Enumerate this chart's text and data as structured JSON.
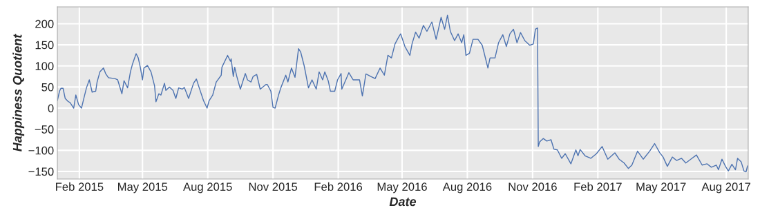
{
  "chart_data": {
    "type": "line",
    "xlabel": "Date",
    "ylabel": "Happiness Quotient",
    "grid": true,
    "xlim": [
      "2015-01-01",
      "2017-09-01"
    ],
    "ylim": [
      -168,
      240
    ],
    "xticks": [
      {
        "value": "2015-02-01",
        "label": "Feb 2015"
      },
      {
        "value": "2015-05-01",
        "label": "May 2015"
      },
      {
        "value": "2015-08-01",
        "label": "Aug 2015"
      },
      {
        "value": "2015-11-01",
        "label": "Nov 2015"
      },
      {
        "value": "2016-02-01",
        "label": "Feb 2016"
      },
      {
        "value": "2016-05-01",
        "label": "May 2016"
      },
      {
        "value": "2016-08-01",
        "label": "Aug 2016"
      },
      {
        "value": "2016-11-01",
        "label": "Nov 2016"
      },
      {
        "value": "2017-02-01",
        "label": "Feb 2017"
      },
      {
        "value": "2017-05-01",
        "label": "May 2017"
      },
      {
        "value": "2017-08-01",
        "label": "Aug 2017"
      }
    ],
    "yticks": [
      {
        "value": -150,
        "label": "−150"
      },
      {
        "value": -100,
        "label": "−100"
      },
      {
        "value": -50,
        "label": "−50"
      },
      0,
      50,
      100,
      150,
      200
    ],
    "series": [
      {
        "color": "#4c72b0",
        "x": [
          "2015-01-01",
          "2015-01-04",
          "2015-01-06",
          "2015-01-09",
          "2015-01-12",
          "2015-01-16",
          "2015-01-19",
          "2015-01-24",
          "2015-01-27",
          "2015-01-31",
          "2015-02-04",
          "2015-02-07",
          "2015-02-11",
          "2015-02-15",
          "2015-02-19",
          "2015-02-24",
          "2015-02-26",
          "2015-03-02",
          "2015-03-07",
          "2015-03-10",
          "2015-03-14",
          "2015-03-23",
          "2015-03-27",
          "2015-04-02",
          "2015-04-05",
          "2015-04-10",
          "2015-04-14",
          "2015-04-17",
          "2015-04-22",
          "2015-04-25",
          "2015-04-28",
          "2015-05-01",
          "2015-05-03",
          "2015-05-08",
          "2015-05-13",
          "2015-05-18",
          "2015-05-20",
          "2015-05-24",
          "2015-05-27",
          "2015-06-01",
          "2015-06-03",
          "2015-06-08",
          "2015-06-13",
          "2015-06-17",
          "2015-06-21",
          "2015-06-26",
          "2015-06-29",
          "2015-07-05",
          "2015-07-12",
          "2015-07-16",
          "2015-07-20",
          "2015-07-26",
          "2015-07-31",
          "2015-08-03",
          "2015-08-08",
          "2015-08-13",
          "2015-08-20",
          "2015-08-21",
          "2015-08-29",
          "2015-09-02",
          "2015-09-03",
          "2015-09-06",
          "2015-09-08",
          "2015-09-11",
          "2015-09-16",
          "2015-09-23",
          "2015-09-26",
          "2015-10-01",
          "2015-10-04",
          "2015-10-09",
          "2015-10-14",
          "2015-10-22",
          "2015-10-24",
          "2015-10-29",
          "2015-11-01",
          "2015-11-04",
          "2015-11-09",
          "2015-11-12",
          "2015-11-19",
          "2015-11-22",
          "2015-11-27",
          "2015-12-02",
          "2015-12-07",
          "2015-12-10",
          "2015-12-15",
          "2015-12-21",
          "2015-12-26",
          "2016-01-01",
          "2016-01-05",
          "2016-01-10",
          "2016-01-13",
          "2016-01-18",
          "2016-01-21",
          "2016-01-27",
          "2016-01-31",
          "2016-02-05",
          "2016-02-06",
          "2016-02-16",
          "2016-02-22",
          "2016-03-02",
          "2016-03-06",
          "2016-03-11",
          "2016-03-18",
          "2016-03-24",
          "2016-03-31",
          "2016-04-06",
          "2016-04-11",
          "2016-04-16",
          "2016-04-21",
          "2016-04-26",
          "2016-04-29",
          "2016-05-05",
          "2016-05-12",
          "2016-05-15",
          "2016-05-20",
          "2016-05-25",
          "2016-05-31",
          "2016-06-05",
          "2016-06-12",
          "2016-06-18",
          "2016-06-25",
          "2016-06-30",
          "2016-07-04",
          "2016-07-08",
          "2016-07-14",
          "2016-07-19",
          "2016-07-24",
          "2016-07-27",
          "2016-07-30",
          "2016-08-04",
          "2016-08-09",
          "2016-08-16",
          "2016-08-22",
          "2016-08-30",
          "2016-09-02",
          "2016-09-09",
          "2016-09-14",
          "2016-09-20",
          "2016-09-25",
          "2016-09-30",
          "2016-10-05",
          "2016-10-10",
          "2016-10-15",
          "2016-10-21",
          "2016-10-28",
          "2016-11-02",
          "2016-11-05",
          "2016-11-08",
          "2016-11-09",
          "2016-11-11",
          "2016-11-16",
          "2016-11-21",
          "2016-11-27",
          "2016-12-01",
          "2016-12-06",
          "2016-12-12",
          "2016-12-17",
          "2016-12-25",
          "2017-01-01",
          "2017-01-04",
          "2017-01-07",
          "2017-01-14",
          "2017-01-22",
          "2017-01-30",
          "2017-02-07",
          "2017-02-15",
          "2017-02-25",
          "2017-03-03",
          "2017-03-10",
          "2017-03-16",
          "2017-03-21",
          "2017-03-29",
          "2017-04-06",
          "2017-04-15",
          "2017-04-22",
          "2017-04-29",
          "2017-05-04",
          "2017-05-10",
          "2017-05-17",
          "2017-05-23",
          "2017-05-30",
          "2017-06-05",
          "2017-06-12",
          "2017-06-20",
          "2017-06-28",
          "2017-07-05",
          "2017-07-11",
          "2017-07-18",
          "2017-07-21",
          "2017-07-26",
          "2017-07-31",
          "2017-08-04",
          "2017-08-09",
          "2017-08-14",
          "2017-08-17",
          "2017-08-22",
          "2017-08-26",
          "2017-08-29",
          "2017-08-31"
        ],
        "values": [
          18,
          40,
          47,
          47,
          23,
          16,
          13,
          0,
          31,
          8,
          0,
          21,
          48,
          67,
          38,
          40,
          62,
          86,
          95,
          82,
          72,
          70,
          67,
          34,
          65,
          48,
          86,
          105,
          129,
          119,
          96,
          67,
          95,
          101,
          86,
          53,
          15,
          34,
          31,
          59,
          42,
          50,
          42,
          23,
          48,
          45,
          49,
          23,
          59,
          69,
          48,
          18,
          0,
          18,
          31,
          62,
          78,
          97,
          125,
          111,
          117,
          75,
          97,
          75,
          45,
          82,
          67,
          62,
          75,
          80,
          45,
          56,
          56,
          40,
          2,
          0,
          32,
          48,
          78,
          62,
          95,
          73,
          141,
          133,
          100,
          48,
          67,
          45,
          86,
          67,
          86,
          64,
          40,
          40,
          67,
          82,
          45,
          84,
          67,
          67,
          29,
          81,
          75,
          70,
          95,
          78,
          125,
          119,
          152,
          168,
          176,
          146,
          125,
          152,
          180,
          166,
          196,
          182,
          204,
          163,
          215,
          187,
          220,
          182,
          160,
          176,
          155,
          174,
          125,
          130,
          163,
          163,
          149,
          95,
          119,
          119,
          155,
          174,
          146,
          176,
          187,
          155,
          179,
          160,
          149,
          152,
          187,
          190,
          -91,
          -80,
          -72,
          -78,
          -75,
          -97,
          -99,
          -119,
          -108,
          -132,
          -99,
          -113,
          -98,
          -113,
          -119,
          -108,
          -91,
          -121,
          -106,
          -121,
          -130,
          -143,
          -135,
          -102,
          -121,
          -102,
          -84,
          -105,
          -116,
          -138,
          -116,
          -124,
          -119,
          -130,
          -121,
          -111,
          -135,
          -132,
          -140,
          -135,
          -146,
          -121,
          -138,
          -149,
          -133,
          -146,
          -119,
          -127,
          -149,
          -151,
          -137
        ]
      }
    ]
  }
}
